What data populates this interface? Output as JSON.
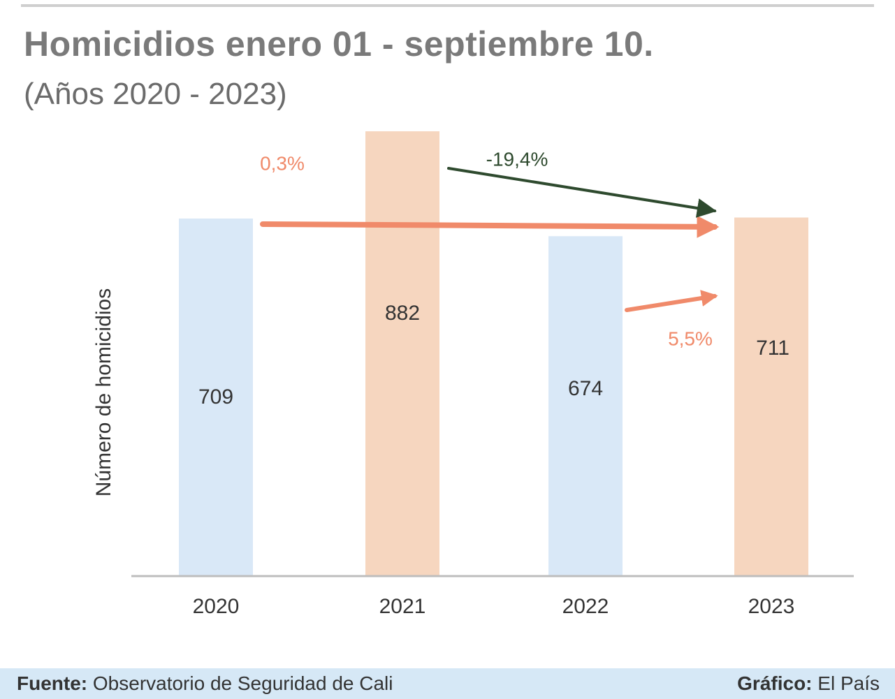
{
  "header": {
    "title": "Homicidios enero 01 - septiembre 10.",
    "subtitle": "(Años 2020 - 2023)"
  },
  "chart_data": {
    "type": "bar",
    "title": "Homicidios enero 01 - septiembre 10.",
    "subtitle": "(Años 2020 - 2023)",
    "xlabel": "",
    "ylabel": "Número de homicidios",
    "categories": [
      "2020",
      "2021",
      "2022",
      "2023"
    ],
    "values": [
      709,
      882,
      674,
      711
    ],
    "value_labels": [
      "709",
      "882",
      "674",
      "711"
    ],
    "bar_colors": [
      "#d9e8f7",
      "#f6d6bf",
      "#d9e8f7",
      "#f6d6bf"
    ],
    "ylim": [
      0,
      882
    ],
    "grid": false,
    "annotations": [
      {
        "text": "0,3%",
        "from": "2020",
        "to": "2023",
        "color": "#f08a6a"
      },
      {
        "text": "-19,4%",
        "from": "2021",
        "to": "2023",
        "color": "#2e4a2e"
      },
      {
        "text": "5,5%",
        "from": "2022",
        "to": "2023",
        "color": "#f08a6a"
      }
    ]
  },
  "footer": {
    "source_label": "Fuente:",
    "source_text": " Observatorio de Seguridad de Cali",
    "credit_label": "Gráfico:",
    "credit_text": " El País"
  },
  "colors": {
    "blue_bar": "#d9e8f7",
    "orange_bar": "#f6d6bf",
    "arrow_red": "#f08a6a",
    "arrow_green": "#2e4a2e",
    "footer_bg": "#d6e8f6"
  }
}
